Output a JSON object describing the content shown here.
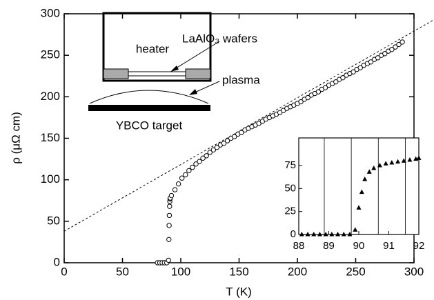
{
  "chart_data": {
    "type": "scatter",
    "xlabel": "T (K)",
    "ylabel": "ρ (μΩ cm)",
    "xlim": [
      0,
      300
    ],
    "ylim": [
      0,
      300
    ],
    "xticks": [
      0,
      50,
      100,
      150,
      200,
      250,
      300
    ],
    "yticks": [
      0,
      50,
      100,
      150,
      200,
      250,
      300
    ],
    "color": "#000000",
    "x": [
      80,
      82,
      84,
      86,
      88,
      89.5,
      89.8,
      90,
      90.2,
      90.4,
      90.6,
      90.8,
      91,
      92,
      95,
      98,
      101,
      104,
      107,
      110,
      113,
      116,
      119,
      122,
      125,
      128,
      131,
      134,
      137,
      140,
      143,
      146,
      149,
      152,
      155,
      158,
      161,
      164,
      167,
      170,
      173,
      176,
      179,
      182,
      185,
      188,
      191,
      194,
      197,
      200,
      203,
      206,
      209,
      212,
      215,
      218,
      221,
      224,
      227,
      230,
      233,
      236,
      239,
      242,
      245,
      248,
      251,
      254,
      257,
      260,
      263,
      266,
      269,
      272,
      275,
      278,
      281,
      284,
      287,
      290
    ],
    "y": [
      0,
      0,
      0,
      0,
      0,
      3,
      28,
      45,
      57,
      68,
      74,
      77,
      78,
      81,
      88,
      95,
      102,
      106,
      111,
      115,
      119,
      122,
      126,
      129,
      133,
      136,
      139,
      142,
      144,
      147,
      150,
      152,
      155,
      157,
      160,
      162,
      164,
      166,
      168,
      170.5,
      173,
      175,
      177,
      179,
      181,
      183.5,
      186,
      188,
      190,
      192,
      194,
      197,
      199,
      202,
      204,
      206,
      209,
      211,
      214,
      216,
      218,
      221,
      223,
      226,
      228,
      230,
      233,
      235,
      238,
      240,
      242,
      245,
      247,
      250,
      252,
      255,
      257,
      260,
      263,
      266
    ],
    "fit_line": {
      "x": [
        0,
        316
      ],
      "y": [
        38,
        292
      ]
    },
    "inset": {
      "type": "scatter",
      "xlim": [
        88,
        92
      ],
      "ylim": [
        0,
        105
      ],
      "xticks": [
        88,
        89,
        90,
        91,
        92
      ],
      "yticks": [
        0,
        25,
        50,
        75
      ],
      "vlines": [
        88.85,
        89.75,
        90.65,
        91.55
      ],
      "x": [
        88.1,
        88.3,
        88.5,
        88.7,
        88.9,
        89.1,
        89.3,
        89.5,
        89.7,
        89.88,
        90,
        90.1,
        90.2,
        90.35,
        90.5,
        90.7,
        90.9,
        91.1,
        91.3,
        91.5,
        91.7,
        91.9,
        92
      ],
      "y": [
        0,
        0,
        0,
        0,
        0,
        0,
        0,
        0,
        0,
        5,
        29,
        46,
        60,
        68,
        72,
        75,
        77,
        78,
        79,
        80,
        81,
        82,
        83
      ]
    },
    "diagram": {
      "heater": "heater",
      "wafers": "LaAlO₃ wafers",
      "plasma": "plasma",
      "target": "YBCO target"
    }
  }
}
